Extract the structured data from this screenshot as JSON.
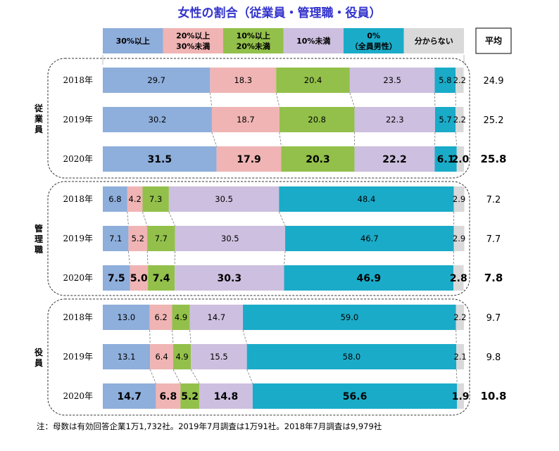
{
  "chart_data": {
    "type": "bar",
    "orientation": "horizontal",
    "stacked": true,
    "title": "女性の割合（従業員・管理職・役員）",
    "legend_placement": "top",
    "legend": [
      "30%以上",
      "20%以上\n30%未満",
      "10%以上\n20%未満",
      "10%未満",
      "0%\n（全員男性）",
      "分からない"
    ],
    "colors": [
      "#8eaedb",
      "#f0b4b4",
      "#92c04a",
      "#cdbfdf",
      "#1aabc8",
      "#d9d9d9"
    ],
    "average_header": "平均",
    "xlim": [
      0,
      100
    ],
    "groups": [
      {
        "label": "従業員",
        "rows": [
          {
            "year": "2018年",
            "values": [
              29.7,
              18.3,
              20.4,
              23.5,
              5.8,
              2.2
            ],
            "average": 24.9
          },
          {
            "year": "2019年",
            "values": [
              30.2,
              18.7,
              20.8,
              22.3,
              5.7,
              2.2
            ],
            "average": 25.2
          },
          {
            "year": "2020年",
            "values": [
              31.5,
              17.9,
              20.3,
              22.2,
              6.1,
              2.0
            ],
            "average": 25.8
          }
        ]
      },
      {
        "label": "管理職",
        "rows": [
          {
            "year": "2018年",
            "values": [
              6.8,
              4.2,
              7.3,
              30.5,
              48.4,
              2.9
            ],
            "average": 7.2
          },
          {
            "year": "2019年",
            "values": [
              7.1,
              5.2,
              7.7,
              30.5,
              46.7,
              2.9
            ],
            "average": 7.7
          },
          {
            "year": "2020年",
            "values": [
              7.5,
              5.0,
              7.4,
              30.3,
              46.9,
              2.8
            ],
            "average": 7.8
          }
        ]
      },
      {
        "label": "役員",
        "rows": [
          {
            "year": "2018年",
            "values": [
              13.0,
              6.2,
              4.9,
              14.7,
              59.0,
              2.2
            ],
            "average": 9.7
          },
          {
            "year": "2019年",
            "values": [
              13.1,
              6.4,
              4.9,
              15.5,
              58.0,
              2.1
            ],
            "average": 9.8
          },
          {
            "year": "2020年",
            "values": [
              14.7,
              6.8,
              5.2,
              14.8,
              56.6,
              1.9
            ],
            "average": 10.8
          }
        ]
      }
    ]
  },
  "note": "注：母数は有効回答企業1万1,732社。2019年7月調査は1万91社。2018年7月調査は9,979社"
}
